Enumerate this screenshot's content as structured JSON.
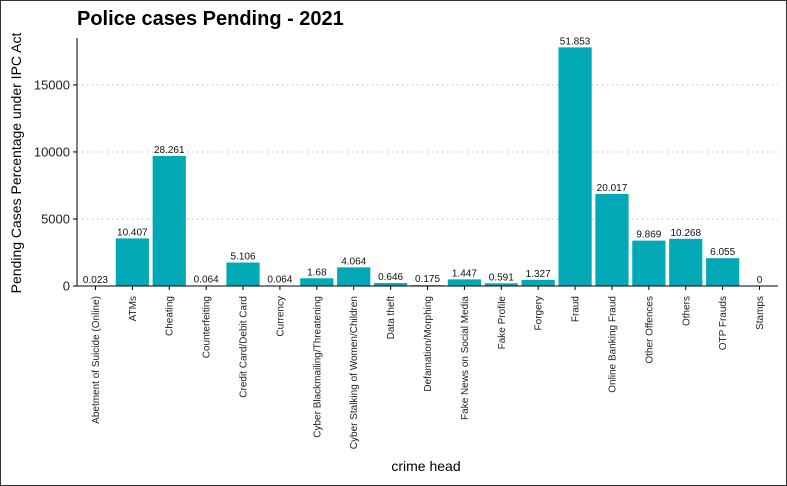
{
  "chart_data": {
    "type": "bar",
    "title": "Police cases Pending - 2021",
    "xlabel": "crime head",
    "ylabel": "Pending Cases Percentage under IPC Act",
    "ylim": [
      0,
      18500
    ],
    "yticks": [
      0,
      5000,
      10000,
      15000
    ],
    "ytick_labels": [
      "0",
      "5000",
      "10000",
      "15000"
    ],
    "grid": "horizontal-dotted",
    "legend": "none",
    "bar_color": "#00A9B5",
    "categories": [
      "Abetment of Suicide (Online)",
      "ATMs",
      "Cheating",
      "Counterfeiting",
      "Credit Card/Debit Card",
      "Currency",
      "Cyber Blackmailing/Threatening",
      "Cyber Stalking of Women/Children",
      "Data theft",
      "Defamation/Morphing",
      "Fake News on Social Media",
      "Fake Profile",
      "Forgery",
      "Fraud",
      "Online Banking Fraud",
      "Other Offences",
      "Others",
      "OTP Frauds",
      "Stamps"
    ],
    "values": [
      8,
      3550,
      9700,
      22,
      1750,
      22,
      575,
      1390,
      220,
      60,
      495,
      200,
      455,
      17800,
      6870,
      3385,
      3520,
      2075,
      0
    ],
    "data_labels": [
      "0.023",
      "10.407",
      "28.261",
      "0.064",
      "5.106",
      "0.064",
      "1.68",
      "4.064",
      "0.646",
      "0.175",
      "1.447",
      "0.591",
      "1.327",
      "51.853",
      "20.017",
      "9.869",
      "10.268",
      "6.055",
      "0"
    ]
  }
}
